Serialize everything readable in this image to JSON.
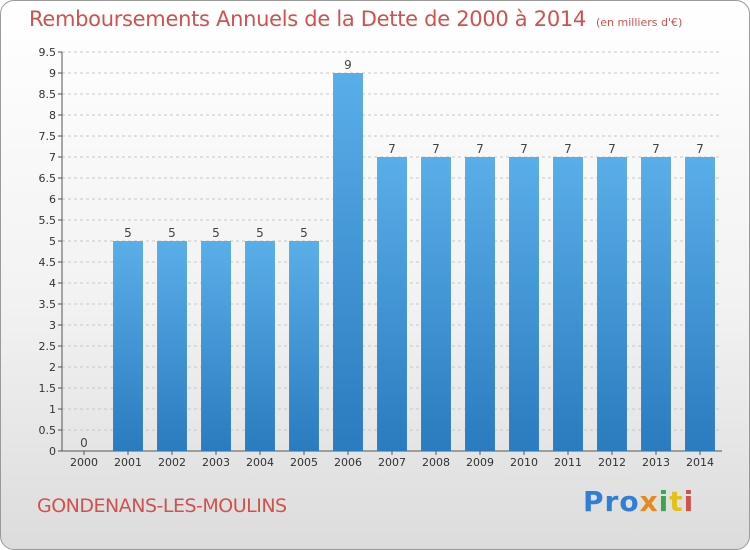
{
  "title": "Remboursements Annuels de la Dette de 2000 à 2014",
  "unit": "(en milliers d'€)",
  "place": "GONDENANS-LES-MOULINS",
  "brand": [
    "Pro",
    "x",
    "i",
    "t",
    "i"
  ],
  "colors": {
    "bar_top": "#5aaee8",
    "bar_bottom": "#2a7bbf",
    "title": "#d0524f"
  },
  "chart_data": {
    "type": "bar",
    "title": "Remboursements Annuels de la Dette de 2000 à 2014",
    "xlabel": "",
    "ylabel": "",
    "categories": [
      "2000",
      "2001",
      "2002",
      "2003",
      "2004",
      "2005",
      "2006",
      "2007",
      "2008",
      "2009",
      "2010",
      "2011",
      "2012",
      "2013",
      "2014"
    ],
    "values": [
      0,
      5,
      5,
      5,
      5,
      5,
      9,
      7,
      7,
      7,
      7,
      7,
      7,
      7,
      7
    ],
    "ylim": [
      0,
      9.5
    ],
    "yticks": [
      "0",
      "0.5",
      "1",
      "1.5",
      "2",
      "2.5",
      "3",
      "3.5",
      "4",
      "4.5",
      "5",
      "5.5",
      "6",
      "6.5",
      "7",
      "7.5",
      "8",
      "8.5",
      "9",
      "9.5"
    ],
    "grid": "horizontal-dashed",
    "legend": "none"
  }
}
